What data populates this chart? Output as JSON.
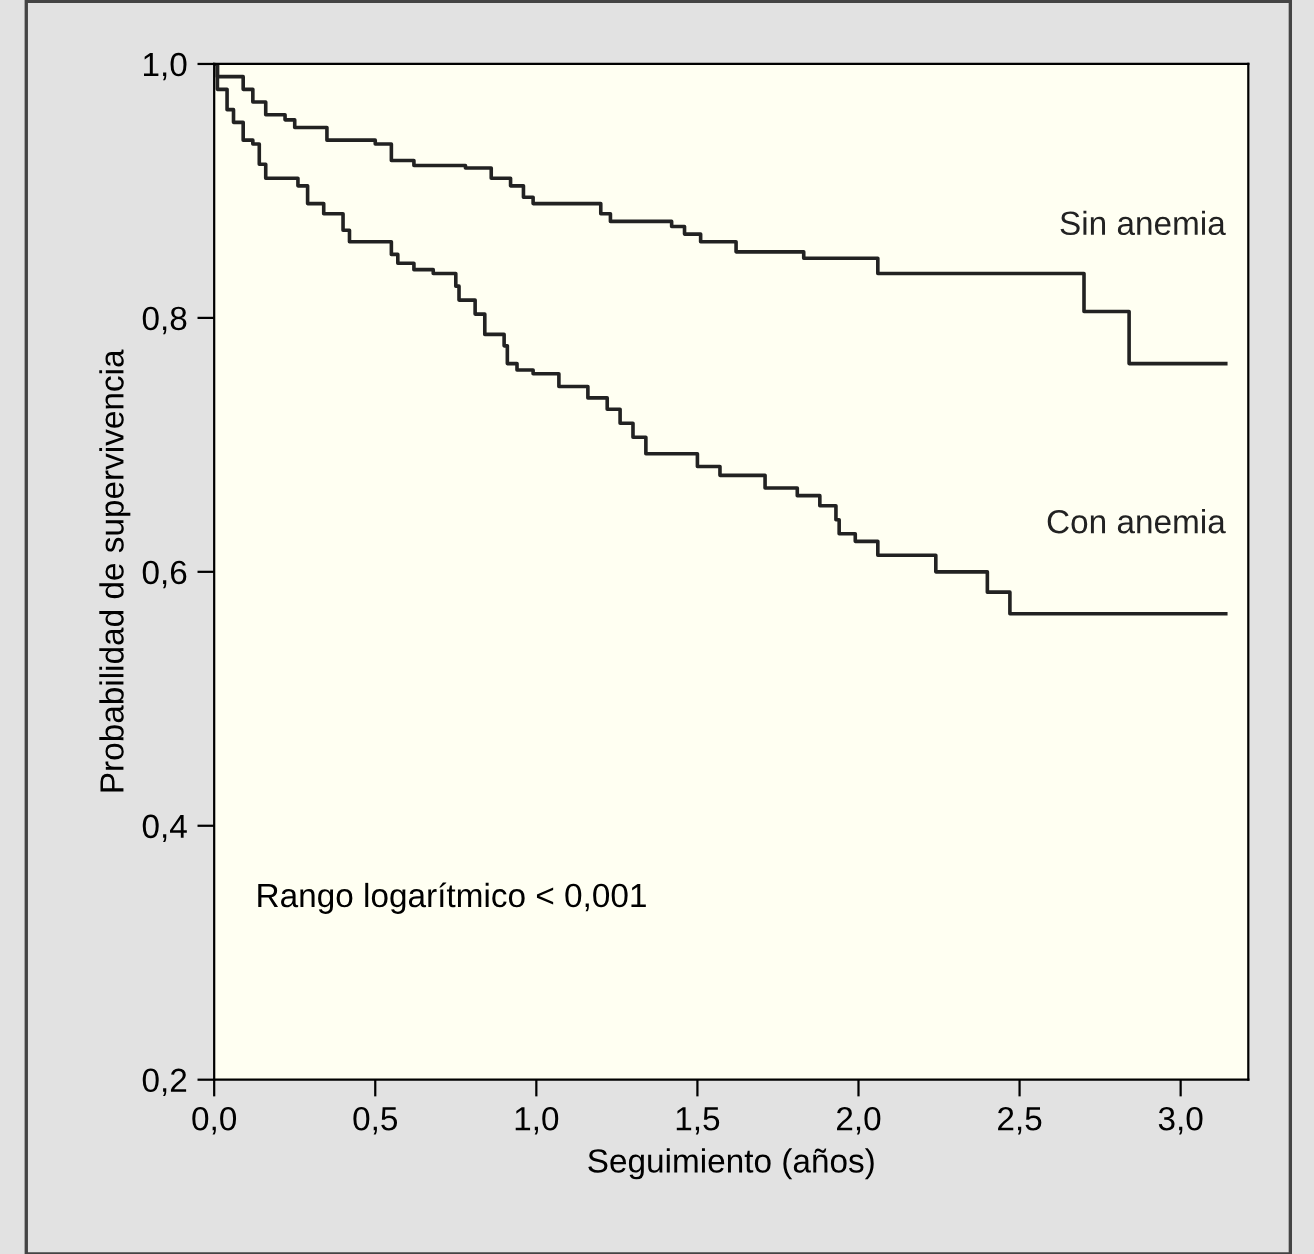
{
  "chart_data": {
    "type": "step",
    "xlabel": "Seguimiento (años)",
    "ylabel": "Probabilidad de supervivencia",
    "xlim": [
      0,
      3.21
    ],
    "ylim": [
      0.2,
      1.0
    ],
    "xticks": [
      {
        "value": 0,
        "label": "0,0"
      },
      {
        "value": 0.5,
        "label": "0,5"
      },
      {
        "value": 1,
        "label": "1,0"
      },
      {
        "value": 1.5,
        "label": "1,5"
      },
      {
        "value": 2,
        "label": "2,0"
      },
      {
        "value": 2.5,
        "label": "2,5"
      },
      {
        "value": 3,
        "label": "3,0"
      }
    ],
    "yticks": [
      {
        "value": 0.2,
        "label": "0,2"
      },
      {
        "value": 0.4,
        "label": "0,4"
      },
      {
        "value": 0.6,
        "label": "0,6"
      },
      {
        "value": 0.8,
        "label": "0,8"
      },
      {
        "value": 1.0,
        "label": "1,0"
      }
    ],
    "grid": false,
    "legend": false,
    "marker": "none",
    "line_style": "solid",
    "annotations": [
      "Rango logarítmico < 0,001"
    ],
    "series": [
      {
        "name": "Sin anemia",
        "color": "#222222",
        "x": [
          0,
          0.01,
          0.09,
          0.12,
          0.16,
          0.22,
          0.25,
          0.35,
          0.5,
          0.55,
          0.62,
          0.78,
          0.86,
          0.92,
          0.96,
          0.99,
          1.2,
          1.23,
          1.42,
          1.46,
          1.51,
          1.62,
          1.83,
          2.06,
          2.7,
          2.84,
          3.14
        ],
        "values": [
          1.0,
          0.99,
          0.98,
          0.97,
          0.96,
          0.956,
          0.95,
          0.94,
          0.937,
          0.924,
          0.92,
          0.918,
          0.91,
          0.904,
          0.895,
          0.89,
          0.882,
          0.876,
          0.872,
          0.866,
          0.86,
          0.852,
          0.847,
          0.835,
          0.805,
          0.764,
          0.764
        ]
      },
      {
        "name": "Con anemia",
        "color": "#222222",
        "x": [
          0,
          0.01,
          0.04,
          0.06,
          0.09,
          0.12,
          0.14,
          0.16,
          0.26,
          0.29,
          0.34,
          0.4,
          0.42,
          0.55,
          0.57,
          0.62,
          0.68,
          0.75,
          0.76,
          0.81,
          0.84,
          0.9,
          0.91,
          0.94,
          0.99,
          1.07,
          1.16,
          1.22,
          1.26,
          1.3,
          1.34,
          1.5,
          1.57,
          1.71,
          1.81,
          1.88,
          1.93,
          1.94,
          1.99,
          2.06,
          2.24,
          2.4,
          2.47,
          3.14
        ],
        "values": [
          1.0,
          0.98,
          0.964,
          0.954,
          0.94,
          0.937,
          0.921,
          0.91,
          0.904,
          0.89,
          0.882,
          0.869,
          0.86,
          0.85,
          0.843,
          0.838,
          0.835,
          0.825,
          0.814,
          0.803,
          0.787,
          0.778,
          0.764,
          0.759,
          0.756,
          0.746,
          0.737,
          0.728,
          0.717,
          0.706,
          0.693,
          0.683,
          0.676,
          0.666,
          0.66,
          0.652,
          0.641,
          0.63,
          0.624,
          0.613,
          0.6,
          0.584,
          0.567,
          0.567
        ]
      }
    ]
  }
}
